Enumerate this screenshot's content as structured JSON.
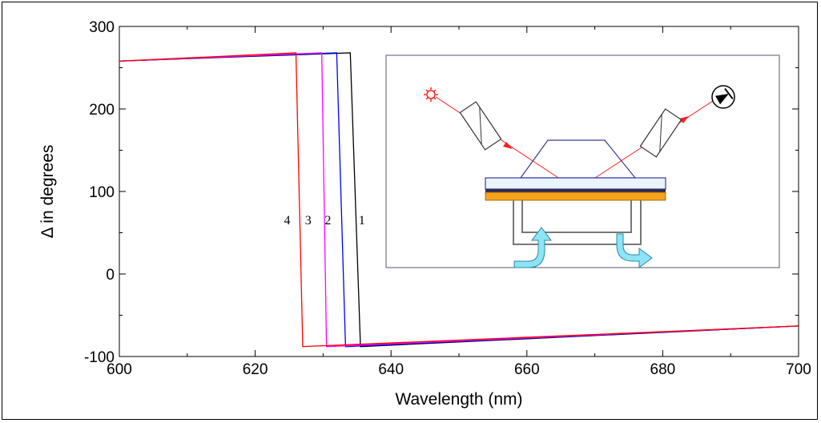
{
  "chart_data": {
    "type": "line",
    "title": "",
    "xlabel": "Wavelength (nm)",
    "ylabel": "Δ in degrees",
    "xlim": [
      600,
      700
    ],
    "ylim": [
      -100,
      300
    ],
    "xticks": [
      600,
      620,
      640,
      660,
      680,
      700
    ],
    "xtick_labels": [
      "600",
      "620",
      "640",
      "660",
      "680",
      "700"
    ],
    "yticks": [
      -100,
      0,
      100,
      200,
      300
    ],
    "ytick_labels": [
      "-100",
      "0",
      "100",
      "200",
      "300"
    ],
    "grid": false,
    "series": [
      {
        "name": "1",
        "color": "#000000",
        "x": [
          600,
          634.0,
          635.5,
          700
        ],
        "y": [
          258,
          268,
          -88,
          -63
        ]
      },
      {
        "name": "2",
        "color": "#0000ff",
        "x": [
          600,
          632.0,
          633.3,
          700
        ],
        "y": [
          258,
          268,
          -88,
          -63
        ]
      },
      {
        "name": "3",
        "color": "#ff00ff",
        "x": [
          600,
          629.8,
          630.5,
          700
        ],
        "y": [
          258,
          268,
          -88,
          -63
        ]
      },
      {
        "name": "4",
        "color": "#ff0000",
        "x": [
          600,
          626.0,
          627.0,
          700
        ],
        "y": [
          258,
          268,
          -88,
          -63
        ]
      }
    ],
    "curve_labels": [
      {
        "text": "4",
        "x": 624.7,
        "y": 60
      },
      {
        "text": "3",
        "x": 627.8,
        "y": 60
      },
      {
        "text": "2",
        "x": 630.7,
        "y": 60
      },
      {
        "text": "1",
        "x": 635.7,
        "y": 60
      }
    ]
  },
  "inset": {
    "description_icons": [
      "laser-source-icon",
      "polarizer-icon",
      "analyzer-icon",
      "detector-icon",
      "flow-in-arrow-icon",
      "flow-out-arrow-icon"
    ]
  }
}
